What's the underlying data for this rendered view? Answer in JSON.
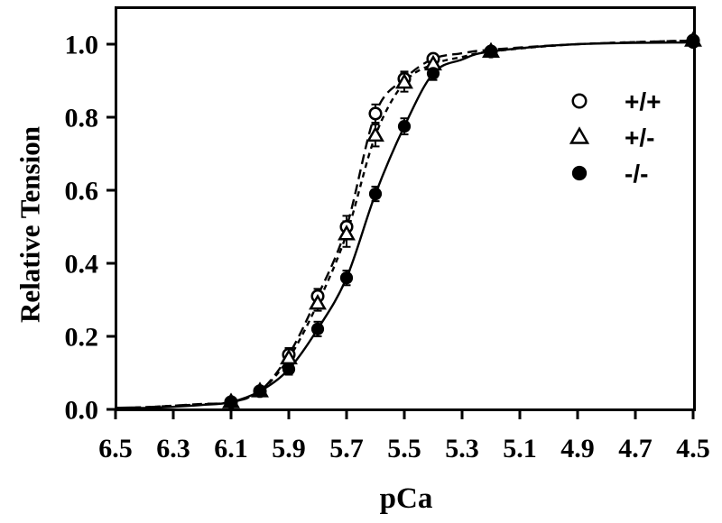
{
  "figure": {
    "background": "#ffffff",
    "ink": "#000000"
  },
  "chart_data": {
    "type": "scatter",
    "title": "",
    "xlabel": "pCa",
    "ylabel": "Relative Tension",
    "x_axis_reversed": true,
    "xlim": [
      6.5,
      4.5
    ],
    "ylim": [
      0.0,
      1.1
    ],
    "grid": false,
    "legend_position": "upper-right-inside",
    "x_ticks": [
      6.5,
      6.3,
      6.1,
      5.9,
      5.7,
      5.5,
      5.3,
      5.1,
      4.9,
      4.7,
      4.5
    ],
    "x_tick_labels": [
      "6.5",
      "6.3",
      "6.1",
      "5.9",
      "5.7",
      "5.5",
      "5.3",
      "5.1",
      "4.9",
      "4.7",
      "4.5"
    ],
    "y_ticks": [
      0.0,
      0.2,
      0.4,
      0.6,
      0.8,
      1.0
    ],
    "y_tick_labels": [
      "0.0",
      "0.2",
      "0.4",
      "0.6",
      "0.8",
      "1.0"
    ],
    "series": [
      {
        "name": "+/+",
        "marker": "open-circle",
        "line": "long-dash",
        "x": [
          6.1,
          6.0,
          5.9,
          5.8,
          5.7,
          5.6,
          5.5,
          5.4,
          5.2,
          4.5
        ],
        "y": [
          0.02,
          0.05,
          0.15,
          0.31,
          0.5,
          0.81,
          0.905,
          0.96,
          0.98,
          1.01
        ],
        "err": [
          0,
          0,
          0.018,
          0.02,
          0.03,
          0.025,
          0.02,
          0.012,
          0,
          0
        ],
        "curve_x": [
          6.5,
          6.4,
          6.3,
          6.2,
          6.1,
          6.0,
          5.9,
          5.8,
          5.7,
          5.6,
          5.5,
          5.4,
          5.3,
          5.2,
          4.9,
          4.5
        ],
        "curve_y": [
          0.004,
          0.006,
          0.01,
          0.015,
          0.02,
          0.05,
          0.15,
          0.31,
          0.5,
          0.81,
          0.905,
          0.96,
          0.975,
          0.985,
          1.0,
          1.01
        ]
      },
      {
        "name": "+/-",
        "marker": "open-triangle",
        "line": "short-dash",
        "x": [
          6.1,
          6.0,
          5.9,
          5.8,
          5.7,
          5.6,
          5.5,
          5.4,
          5.2,
          4.5
        ],
        "y": [
          0.02,
          0.05,
          0.14,
          0.29,
          0.48,
          0.75,
          0.895,
          0.945,
          0.98,
          1.01
        ],
        "err": [
          0,
          0,
          0.018,
          0.02,
          0.035,
          0.03,
          0.025,
          0.015,
          0,
          0
        ],
        "curve_x": [
          6.5,
          6.4,
          6.3,
          6.2,
          6.1,
          6.0,
          5.9,
          5.8,
          5.7,
          5.6,
          5.5,
          5.4,
          5.3,
          5.2,
          4.9,
          4.5
        ],
        "curve_y": [
          0.004,
          0.006,
          0.01,
          0.014,
          0.02,
          0.05,
          0.14,
          0.29,
          0.48,
          0.75,
          0.895,
          0.945,
          0.965,
          0.98,
          1.0,
          1.01
        ]
      },
      {
        "name": "-/-",
        "marker": "filled-circle",
        "line": "solid",
        "x": [
          6.1,
          6.0,
          5.9,
          5.8,
          5.7,
          5.6,
          5.5,
          5.4,
          5.2,
          4.5
        ],
        "y": [
          0.02,
          0.05,
          0.11,
          0.22,
          0.36,
          0.59,
          0.775,
          0.92,
          0.98,
          1.005
        ],
        "err": [
          0.01,
          0.01,
          0.015,
          0.02,
          0.02,
          0.02,
          0.022,
          0.018,
          0.008,
          0
        ],
        "curve_x": [
          6.5,
          6.4,
          6.3,
          6.2,
          6.1,
          6.0,
          5.9,
          5.8,
          5.7,
          5.6,
          5.5,
          5.4,
          5.3,
          5.2,
          4.9,
          4.5
        ],
        "curve_y": [
          0.003,
          0.004,
          0.007,
          0.012,
          0.02,
          0.05,
          0.11,
          0.22,
          0.36,
          0.59,
          0.775,
          0.92,
          0.958,
          0.98,
          1.0,
          1.005
        ]
      }
    ]
  }
}
